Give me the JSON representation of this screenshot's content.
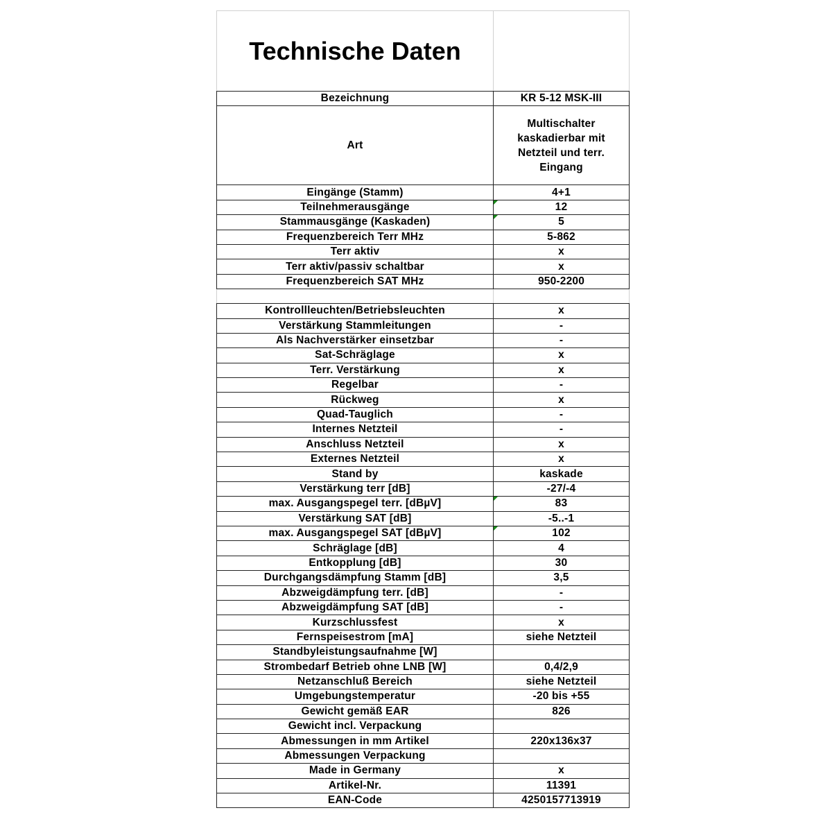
{
  "title": "Technische Daten",
  "block1": [
    {
      "label": "Bezeichnung",
      "value": "KR 5-12 MSK-III"
    },
    {
      "label": "Art",
      "value": "Multischalter kaskadierbar mit Netzteil und terr. Eingang",
      "tall": true
    },
    {
      "label": "Eingänge (Stamm)",
      "value": "4+1"
    },
    {
      "label": "Teilnehmerausgänge",
      "value": "12",
      "marker": true
    },
    {
      "label": "Stammausgänge (Kaskaden)",
      "value": "5",
      "marker": true
    },
    {
      "label": "Frequenzbereich Terr MHz",
      "value": "5-862"
    },
    {
      "label": "Terr aktiv",
      "value": "x"
    },
    {
      "label": "Terr aktiv/passiv schaltbar",
      "value": "x"
    },
    {
      "label": "Frequenzbereich SAT MHz",
      "value": "950-2200"
    }
  ],
  "block2": [
    {
      "label": "Kontrollleuchten/Betriebsleuchten",
      "value": "x"
    },
    {
      "label": "Verstärkung Stammleitungen",
      "value": "-"
    },
    {
      "label": "Als Nachverstärker einsetzbar",
      "value": "-"
    },
    {
      "label": "Sat-Schräglage",
      "value": "x"
    },
    {
      "label": "Terr. Verstärkung",
      "value": "x"
    },
    {
      "label": "Regelbar",
      "value": "-"
    },
    {
      "label": "Rückweg",
      "value": "x"
    },
    {
      "label": "Quad-Tauglich",
      "value": "-"
    },
    {
      "label": "Internes Netzteil",
      "value": "-"
    },
    {
      "label": "Anschluss Netzteil",
      "value": "x"
    },
    {
      "label": "Externes Netzteil",
      "value": "x"
    },
    {
      "label": "Stand by",
      "value": "kaskade"
    },
    {
      "label": "Verstärkung terr [dB]",
      "value": "-27/-4"
    },
    {
      "label": "max. Ausgangspegel terr. [dBµV]",
      "value": "83",
      "marker": true
    },
    {
      "label": "Verstärkung SAT [dB]",
      "value": "-5..-1"
    },
    {
      "label": "max. Ausgangspegel SAT [dBµV]",
      "value": "102",
      "marker": true
    },
    {
      "label": "Schräglage [dB]",
      "value": "4"
    },
    {
      "label": "Entkopplung [dB]",
      "value": "30"
    },
    {
      "label": "Durchgangsdämpfung Stamm [dB]",
      "value": "3,5"
    },
    {
      "label": "Abzweigdämpfung terr. [dB]",
      "value": "-"
    },
    {
      "label": "Abzweigdämpfung SAT [dB]",
      "value": "-"
    },
    {
      "label": "Kurzschlussfest",
      "value": "x"
    },
    {
      "label": "Fernspeisestrom [mA]",
      "value": "siehe Netzteil"
    },
    {
      "label": "Standbyleistungsaufnahme [W]",
      "value": ""
    },
    {
      "label": "Strombedarf Betrieb ohne LNB [W]",
      "value": "0,4/2,9"
    },
    {
      "label": "Netzanschluß Bereich",
      "value": "siehe Netzteil"
    },
    {
      "label": "Umgebungstemperatur",
      "value": "-20 bis +55"
    },
    {
      "label": "Gewicht gemäß EAR",
      "value": "826"
    },
    {
      "label": "Gewicht incl. Verpackung",
      "value": ""
    },
    {
      "label": "Abmessungen in mm Artikel",
      "value": "220x136x37"
    },
    {
      "label": "Abmessungen Verpackung",
      "value": ""
    },
    {
      "label": "Made in Germany",
      "value": "x"
    },
    {
      "label": "Artikel-Nr.",
      "value": "11391"
    },
    {
      "label": "EAN-Code",
      "value": "4250157713919"
    }
  ]
}
